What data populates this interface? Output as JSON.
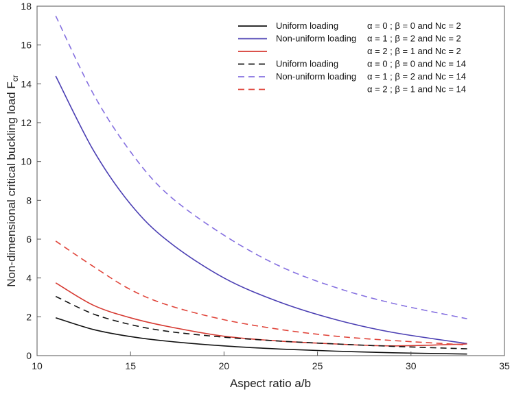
{
  "chart_data": {
    "type": "line",
    "xlabel": "Aspect ratio a/b",
    "ylabel": "Non-dimensional critical buckling load F",
    "ylabel_subscript": "cr",
    "xlim": [
      10,
      35
    ],
    "ylim": [
      0,
      18
    ],
    "xticks": [
      10,
      15,
      20,
      25,
      30,
      35
    ],
    "yticks": [
      0,
      2,
      4,
      6,
      8,
      10,
      12,
      14,
      16,
      18
    ],
    "grid": false,
    "legend_position": "top-right",
    "series": [
      {
        "legend_label": "Uniform loading",
        "legend_params": "α = 0 ; β = 0 and Nc = 2",
        "color": "#111111",
        "dashed": false,
        "x": [
          11,
          13,
          15,
          17,
          20,
          23,
          26,
          29,
          33
        ],
        "y": [
          1.95,
          1.35,
          0.98,
          0.74,
          0.5,
          0.34,
          0.23,
          0.15,
          0.08
        ]
      },
      {
        "legend_label": "Non-uniform loading",
        "legend_params": "α = 1 ; β = 2 and Nc = 2",
        "color": "#4b3fb3",
        "dashed": false,
        "x": [
          11,
          13,
          15,
          17,
          20,
          23,
          26,
          29,
          33
        ],
        "y": [
          14.4,
          10.6,
          7.8,
          5.9,
          4.0,
          2.75,
          1.85,
          1.2,
          0.62
        ]
      },
      {
        "legend_label": "",
        "legend_params": "α = 2 ; β = 1 and Nc = 2",
        "color": "#d63a32",
        "dashed": false,
        "x": [
          11,
          13,
          15,
          17,
          20,
          23,
          26,
          29,
          33
        ],
        "y": [
          3.75,
          2.6,
          1.95,
          1.5,
          1.0,
          0.75,
          0.6,
          0.5,
          0.6
        ]
      },
      {
        "legend_label": "Uniform loading",
        "legend_params": "α = 0 ; β = 0 and Nc = 14",
        "color": "#111111",
        "dashed": true,
        "x": [
          11,
          13,
          15,
          17,
          20,
          23,
          26,
          29,
          33
        ],
        "y": [
          3.05,
          2.15,
          1.6,
          1.25,
          0.95,
          0.75,
          0.6,
          0.48,
          0.35
        ]
      },
      {
        "legend_label": "Non-uniform loading",
        "legend_params": "α = 1 ; β = 2 and Nc = 14",
        "color": "#8570e0",
        "dashed": true,
        "x": [
          11,
          13,
          15,
          17,
          20,
          23,
          26,
          29,
          33
        ],
        "y": [
          17.5,
          13.5,
          10.5,
          8.3,
          6.2,
          4.6,
          3.5,
          2.7,
          1.9
        ]
      },
      {
        "legend_label": "",
        "legend_params": "α = 2 ; β = 1 and Nc = 14",
        "color": "#e0443a",
        "dashed": true,
        "x": [
          11,
          13,
          15,
          17,
          20,
          23,
          26,
          29,
          33
        ],
        "y": [
          5.9,
          4.6,
          3.4,
          2.6,
          1.85,
          1.35,
          1.0,
          0.78,
          0.55
        ]
      }
    ]
  }
}
